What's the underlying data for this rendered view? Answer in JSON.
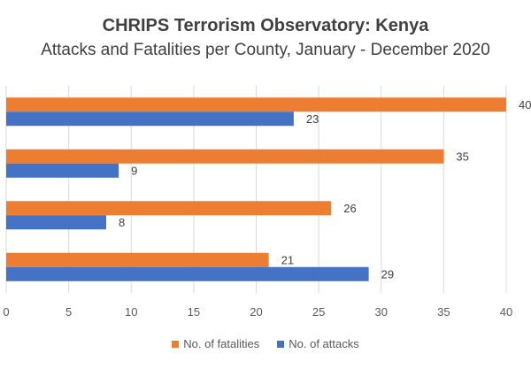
{
  "title": "CHRIPS Terrorism Observatory: Kenya",
  "subtitle": "Attacks and Fatalities per County, January - December 2020",
  "colors": {
    "fatalities": "#ED7D31",
    "attacks": "#4472C4",
    "grid": "#D9D9D9"
  },
  "chart_data": {
    "type": "bar",
    "orientation": "horizontal",
    "categories": [
      "",
      "",
      "",
      ""
    ],
    "series": [
      {
        "name": "No. of fatalities",
        "values": [
          40,
          35,
          26,
          21
        ]
      },
      {
        "name": "No. of attacks",
        "values": [
          23,
          9,
          8,
          29
        ]
      }
    ],
    "xlim": [
      0,
      40
    ],
    "ticks": [
      "0",
      "5",
      "10",
      "15",
      "20",
      "25",
      "30",
      "35",
      "40"
    ],
    "grid": true,
    "legend_position": "bottom"
  }
}
